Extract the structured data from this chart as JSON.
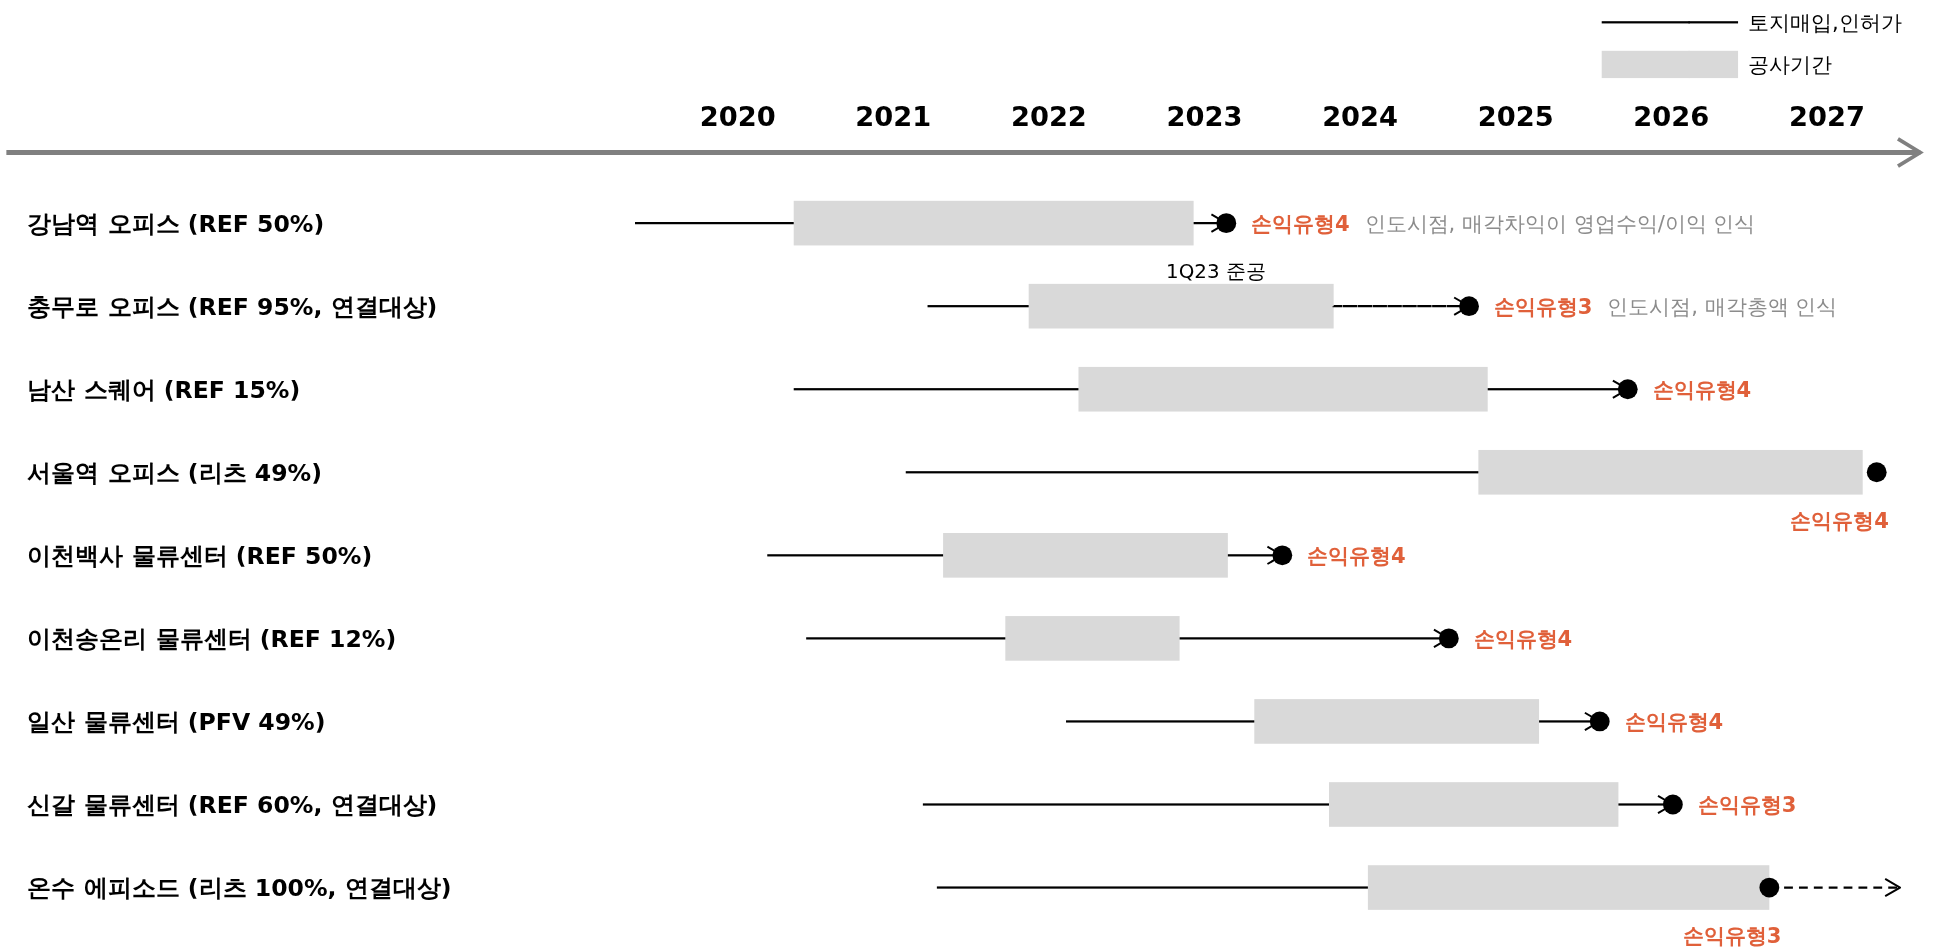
{
  "chart_data": {
    "type": "bar",
    "orientation": "horizontal",
    "legend": "top right",
    "categories": [
      "강남역 오피스 (REF 50%)",
      "충무로 오피스 (REF 95%, 연결대상)",
      "남산 스퀘어 (REF 15%)",
      "서울역 오피스 (리츠 49%)",
      "이천백사 물류센터 (REF 50%)",
      "이천송온리 물류센터 (REF 12%)",
      "일산 물류센터 (PFV 49%)",
      "신갈 물류센터 (REF 60%, 연결대상)",
      "온수 에피소드 (리츠 100%, 연결대상)"
    ],
    "xlim": [
      2015.3,
      2027.6
    ],
    "xticks": [
      2020,
      2021,
      2022,
      2023,
      2024,
      2025,
      2026,
      2027
    ],
    "series": [
      {
        "name": "공사기간",
        "type": "bar",
        "color": "#d9d9d9",
        "base": [
          2020.36,
          2021.87,
          2022.19,
          2024.76,
          2021.32,
          2021.72,
          2023.32,
          2023.8,
          2024.05
        ],
        "values": [
          2.57,
          1.96,
          2.63,
          2.47,
          1.83,
          1.12,
          1.83,
          1.86,
          2.58
        ]
      },
      {
        "name": "토지매입,인허가",
        "type": "bar",
        "color": "#000000",
        "line_style": "solid",
        "base": [
          2019.34,
          2021.22,
          2020.36,
          2021.08,
          2020.19,
          2020.44,
          2022.11,
          2021.19,
          2021.28
        ],
        "values": [
          1.02,
          0.65,
          1.83,
          3.68,
          1.13,
          1.28,
          1.21,
          2.61,
          2.77
        ]
      },
      {
        "type": "bar",
        "color": "#000000",
        "line_style": "solid",
        "base": [
          2022.93,
          null,
          2024.82,
          null,
          2023.15,
          2022.84,
          2025.15,
          2025.66,
          null
        ],
        "values": [
          0.21,
          null,
          0.9,
          null,
          0.35,
          1.73,
          0.39,
          0.35,
          null
        ]
      },
      {
        "type": "bar",
        "color": "#000000",
        "line_style": "dashed",
        "base": [
          null,
          2023.83,
          null,
          null,
          null,
          null,
          null,
          null,
          2026.63
        ],
        "values": [
          null,
          0.87,
          null,
          null,
          null,
          null,
          null,
          null,
          0.84
        ]
      },
      {
        "type": "scatter",
        "color": "#000000",
        "marker": "circle",
        "values": [
          2023.14,
          2024.7,
          2025.72,
          2027.32,
          2023.5,
          2024.57,
          2025.54,
          2026.01,
          2026.63
        ]
      }
    ],
    "annotations": [
      {
        "text": "손익유형4 인도시점, 매각차익이 영업수익/이익 인식",
        "x": 2023.14,
        "y": "강남역 오피스 (REF 50%)"
      },
      {
        "text": "1Q23 준공",
        "x": 2022.93,
        "y": "강남역 오피스 (REF 50%)"
      },
      {
        "text": "손익유형3 인도시점, 매각총액 인식",
        "x": 2024.7,
        "y": "충무로 오피스 (REF 95%, 연결대상)"
      },
      {
        "text": "손익유형4",
        "x": 2025.72,
        "y": "남산 스퀘어 (REF 15%)"
      },
      {
        "text": "손익유형4",
        "x": 2027.32,
        "y": "서울역 오피스 (리츠 49%)"
      },
      {
        "text": "손익유형4",
        "x": 2023.5,
        "y": "이천백사 물류센터 (REF 50%)"
      },
      {
        "text": "손익유형4",
        "x": 2024.57,
        "y": "이천송온리 물류센터 (REF 12%)"
      },
      {
        "text": "손익유형4",
        "x": 2025.54,
        "y": "일산 물류센터 (PFV 49%)"
      },
      {
        "text": "손익유형3",
        "x": 2026.01,
        "y": "신갈 물류센터 (REF 60%, 연결대상)"
      },
      {
        "text": "손익유형3",
        "x": 2026.63,
        "y": "온수 에피소드 (리츠 100%, 연결대상)"
      }
    ]
  }
}
